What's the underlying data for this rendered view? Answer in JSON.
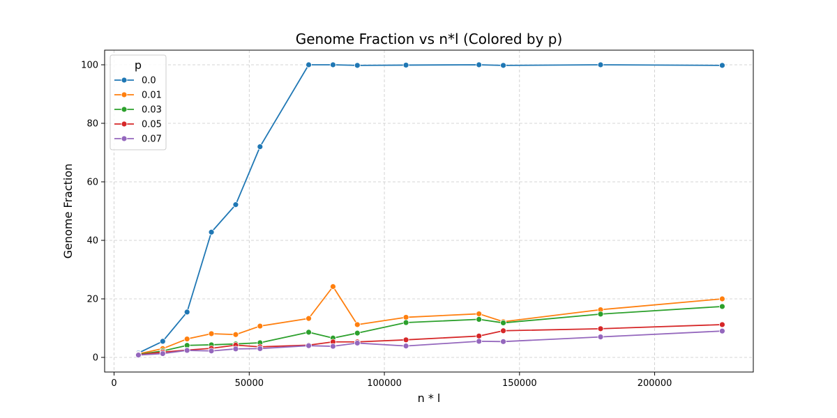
{
  "chart_data": {
    "type": "line",
    "title": "Genome Fraction vs n*l (Colored by p)",
    "xlabel": "n * l",
    "ylabel": "Genome Fraction",
    "xlim": [
      -3500,
      236500
    ],
    "ylim": [
      -5,
      105
    ],
    "xticks": [
      0,
      50000,
      100000,
      150000,
      200000
    ],
    "yticks": [
      0,
      20,
      40,
      60,
      80,
      100
    ],
    "grid": true,
    "legend": {
      "title": "p",
      "placement": "top-left"
    },
    "x": [
      9000,
      18000,
      27000,
      36000,
      45000,
      54000,
      72000,
      81000,
      90000,
      108000,
      135000,
      144000,
      180000,
      225000
    ],
    "series": [
      {
        "name": "0.0",
        "color": "#1f77b4",
        "values": [
          1.5,
          5.5,
          15.5,
          42.8,
          52.2,
          72.0,
          100.0,
          100.0,
          99.8,
          99.9,
          100.0,
          99.8,
          100.0,
          99.8
        ]
      },
      {
        "name": "0.01",
        "color": "#ff7f0e",
        "values": [
          1.2,
          3.0,
          6.3,
          8.1,
          7.8,
          10.7,
          13.3,
          24.2,
          11.2,
          13.7,
          14.9,
          12.2,
          16.3,
          20.0
        ]
      },
      {
        "name": "0.03",
        "color": "#2ca02c",
        "values": [
          1.0,
          2.2,
          4.1,
          4.3,
          4.6,
          5.0,
          8.6,
          6.6,
          8.3,
          11.9,
          13.0,
          11.8,
          14.8,
          17.4
        ]
      },
      {
        "name": "0.05",
        "color": "#d62728",
        "values": [
          0.9,
          1.8,
          2.5,
          3.1,
          4.2,
          3.6,
          4.2,
          5.3,
          5.3,
          6.0,
          7.3,
          9.1,
          9.8,
          11.2
        ]
      },
      {
        "name": "0.07",
        "color": "#9467bd",
        "values": [
          0.8,
          1.3,
          2.4,
          2.2,
          2.9,
          3.0,
          4.0,
          3.8,
          4.9,
          3.9,
          5.5,
          5.4,
          7.0,
          9.0
        ]
      }
    ]
  }
}
